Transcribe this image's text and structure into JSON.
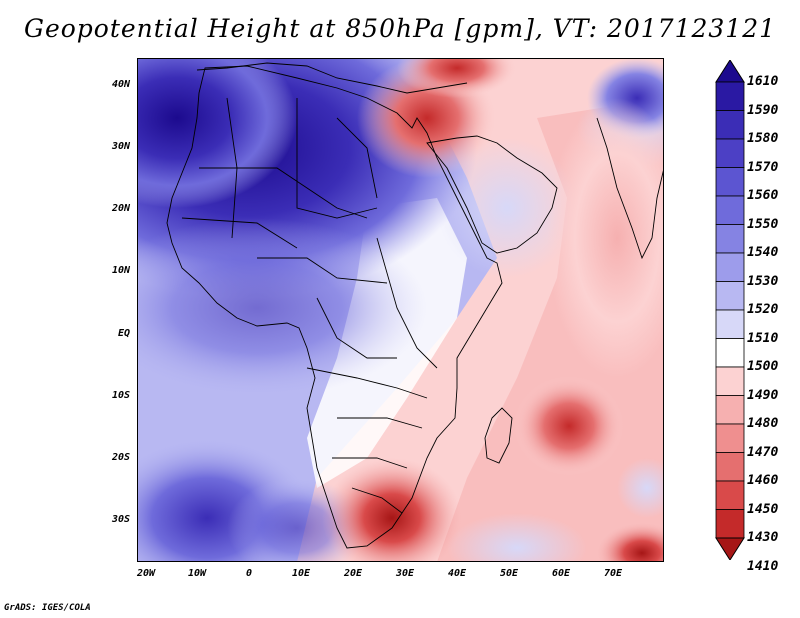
{
  "title": "Geopotential Height at 850hPa [gpm], VT: 2017123121",
  "footer": "GrADS: IGES/COLA",
  "map": {
    "region": "Africa, Arabian Peninsula and western Indian Ocean",
    "field": "850hPa geopotential height"
  },
  "lat_labels": [
    "40N",
    "30N",
    "20N",
    "10N",
    "EQ",
    "10S",
    "20S",
    "30S"
  ],
  "lon_labels": [
    "20W",
    "10W",
    "0",
    "10E",
    "20E",
    "30E",
    "40E",
    "50E",
    "60E",
    "70E"
  ],
  "colorbar": {
    "levels": [
      "1610",
      "1590",
      "1580",
      "1570",
      "1560",
      "1550",
      "1540",
      "1530",
      "1520",
      "1510",
      "1500",
      "1490",
      "1480",
      "1470",
      "1460",
      "1450",
      "1430",
      "1410"
    ],
    "colors": [
      "#1c0a8e",
      "#2a19a3",
      "#3b2db6",
      "#4c40c5",
      "#5c55d1",
      "#6f6bdb",
      "#8583e3",
      "#9d9ceb",
      "#b8b8f2",
      "#d7d8f8",
      "#ffffff",
      "#fcd2d2",
      "#f6b0b0",
      "#ef8f8f",
      "#e56f6f",
      "#d94a4a",
      "#c42a2a",
      "#a61616"
    ]
  },
  "colors": {
    "high": "#1c0a8e",
    "neutral": "#ffffff",
    "low": "#a61616",
    "ocean_fill": "#b8b8f2",
    "coast": "#000000"
  }
}
